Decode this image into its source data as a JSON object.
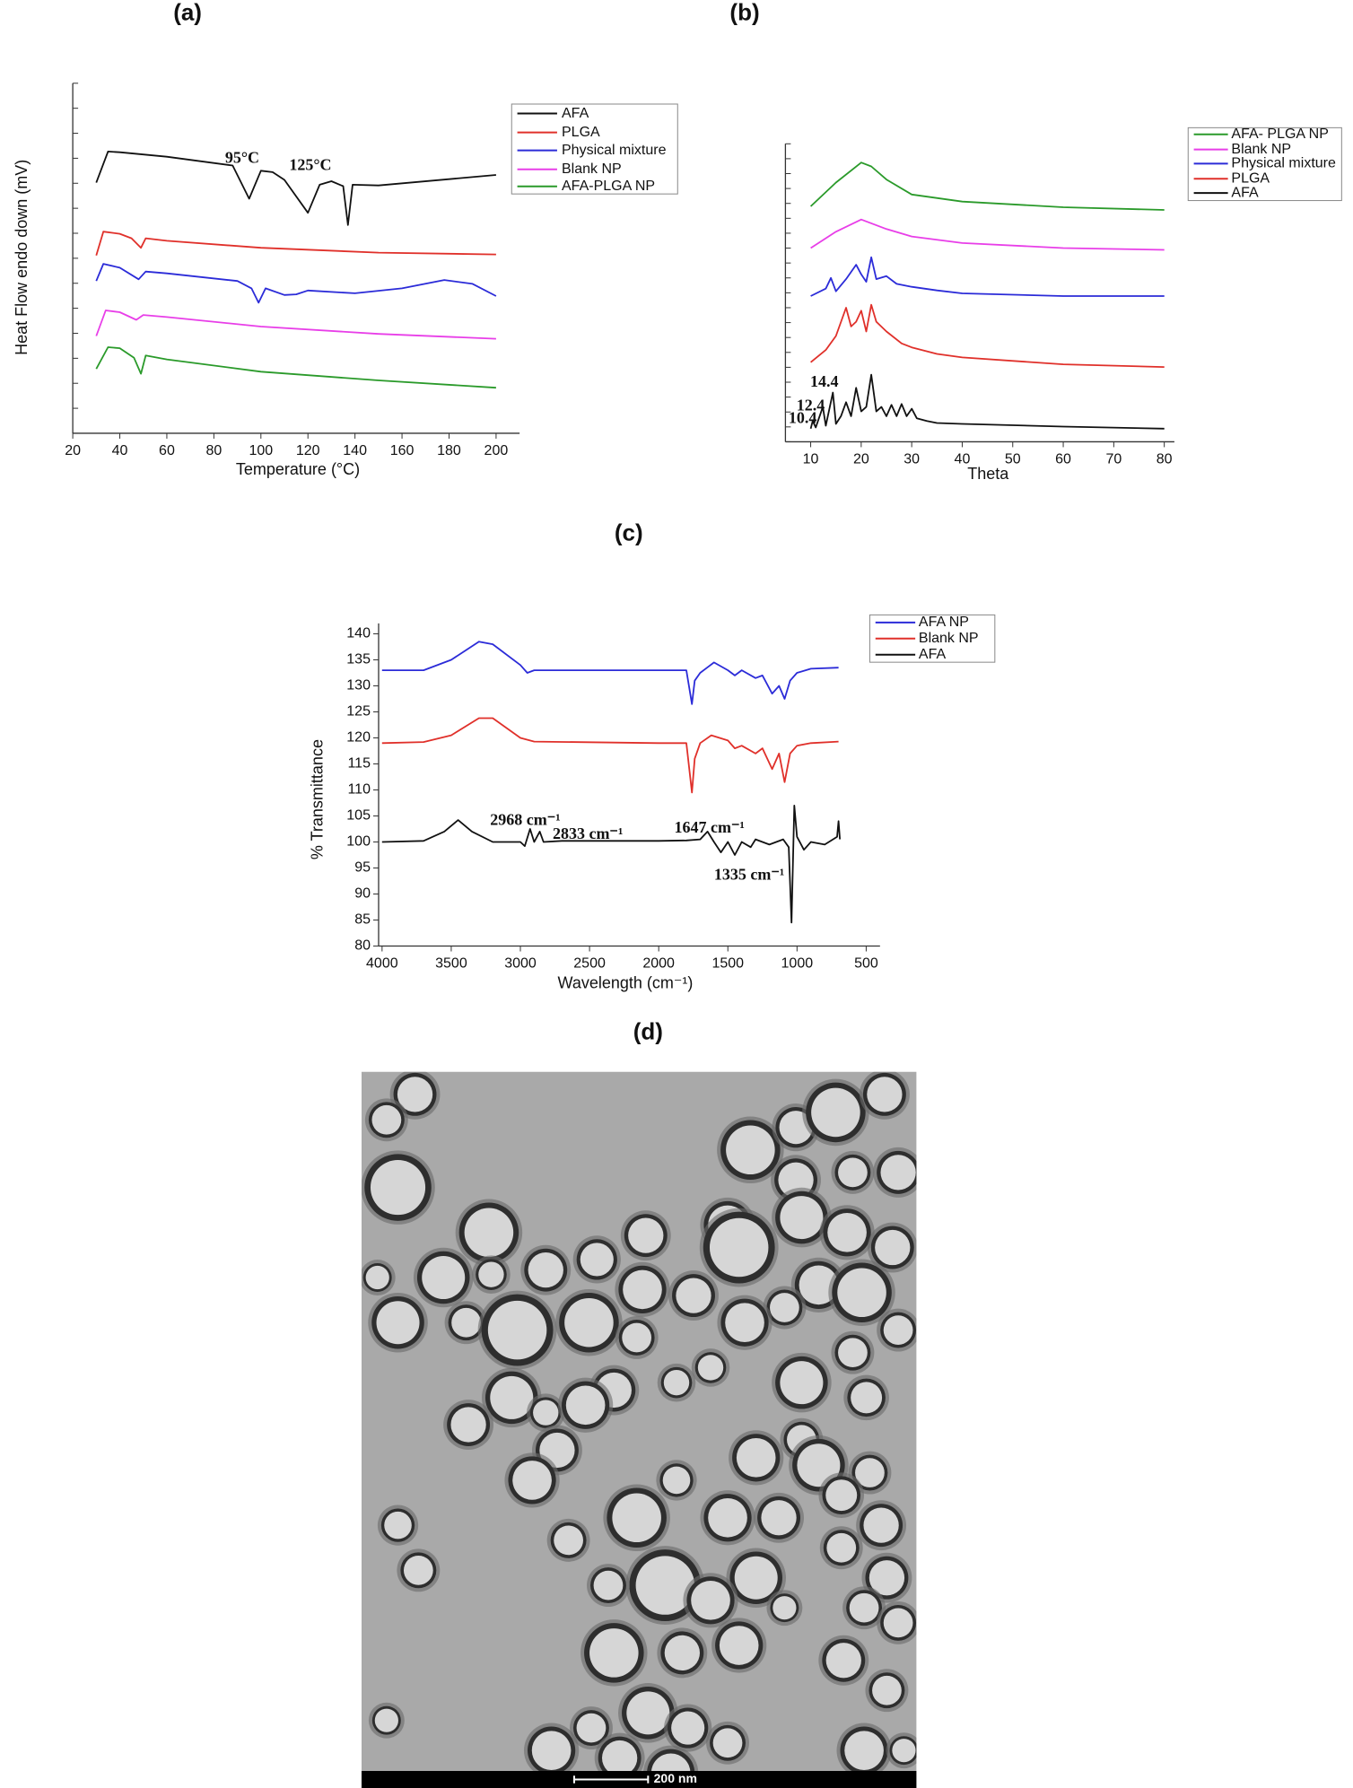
{
  "chart_data": [
    {
      "type": "line",
      "label": "(a)",
      "x_label": "Temperature (°C)",
      "y_label": "Heat Flow endo down (mV)",
      "xlim": [
        20,
        210
      ],
      "ylim": [
        0,
        100
      ],
      "xticks": [
        20,
        40,
        60,
        80,
        100,
        120,
        140,
        160,
        180,
        200
      ],
      "annotations": [
        "95°C",
        "125°C"
      ],
      "series": [
        {
          "name": "AFA",
          "color": "#111111",
          "x": [
            30,
            35,
            40,
            60,
            88,
            95,
            100,
            105,
            110,
            120,
            125,
            130,
            135,
            137,
            139,
            150,
            200
          ],
          "values": [
            71.6,
            80.5,
            80.3,
            79,
            76.5,
            67,
            75,
            74.6,
            72.4,
            63,
            71,
            72,
            70.6,
            59.5,
            71,
            70.8,
            73.8
          ]
        },
        {
          "name": "PLGA",
          "color": "#e0302a",
          "x": [
            30,
            33,
            40,
            45,
            49,
            51,
            60,
            100,
            150,
            200
          ],
          "values": [
            50.8,
            57.6,
            57,
            55.7,
            53,
            55.7,
            55,
            53,
            51.6,
            51.1
          ]
        },
        {
          "name": "Physical mixture",
          "color": "#2b2bd8",
          "x": [
            30,
            33,
            40,
            48,
            51,
            60,
            90,
            96,
            99,
            102,
            110,
            115,
            120,
            140,
            160,
            178,
            190,
            200
          ],
          "values": [
            43.5,
            48.4,
            47.3,
            44,
            46.2,
            45.7,
            43.5,
            41.4,
            37.3,
            41.4,
            39.5,
            39.7,
            40.8,
            40,
            41.4,
            43.8,
            42.7,
            39.2
          ]
        },
        {
          "name": "Blank NP",
          "color": "#e83ee8",
          "x": [
            30,
            34,
            40,
            47,
            50,
            60,
            100,
            150,
            200
          ],
          "values": [
            27.8,
            35.1,
            34.6,
            32.4,
            33.8,
            33.2,
            30.5,
            28.4,
            27
          ]
        },
        {
          "name": "AFA-PLGA NP",
          "color": "#2a9a2a",
          "x": [
            30,
            35,
            40,
            46,
            49,
            51,
            60,
            100,
            150,
            200
          ],
          "values": [
            18.4,
            24.6,
            24.3,
            21.6,
            17,
            22.2,
            21.1,
            17.6,
            15.1,
            13
          ]
        }
      ]
    },
    {
      "type": "line",
      "label": "(b)",
      "x_label": "Theta",
      "xlim": [
        5,
        82
      ],
      "ylim": [
        0,
        100
      ],
      "xticks": [
        10,
        20,
        30,
        40,
        50,
        60,
        70,
        80
      ],
      "annotations": [
        "14.4",
        "12.4",
        "10.4"
      ],
      "series": [
        {
          "name": "AFA- PLGA  NP",
          "color": "#2a9a2a",
          "x": [
            10,
            15,
            20,
            22,
            25,
            30,
            40,
            60,
            80
          ],
          "values": [
            79,
            87,
            93.7,
            92.4,
            88,
            83,
            80.6,
            78.7,
            77.8
          ]
        },
        {
          "name": "Blank NP",
          "color": "#e83ee8",
          "x": [
            10,
            15,
            20,
            25,
            30,
            40,
            60,
            80
          ],
          "values": [
            65,
            70.5,
            74.6,
            71.4,
            68.9,
            66.7,
            65,
            64.4
          ]
        },
        {
          "name": "Physical mixture",
          "color": "#2b2bd8",
          "x": [
            10,
            13,
            14,
            15,
            17,
            19,
            20,
            21,
            22,
            23,
            25,
            27,
            30,
            35,
            40,
            60,
            80
          ],
          "values": [
            48.9,
            51.4,
            55,
            50.5,
            54.6,
            59.4,
            56.2,
            53.7,
            61.9,
            54.6,
            55.6,
            53,
            52,
            50.8,
            49.8,
            48.9,
            48.9
          ]
        },
        {
          "name": "PLGA",
          "color": "#e0302a",
          "x": [
            10,
            13,
            15,
            17,
            18,
            19,
            20,
            21,
            22,
            23,
            25,
            28,
            30,
            35,
            40,
            60,
            80
          ],
          "values": [
            26.7,
            30.8,
            35.5,
            45,
            38.7,
            40.3,
            44,
            37,
            46,
            40.3,
            37,
            33,
            31.7,
            29.5,
            28.3,
            26,
            25.1
          ]
        },
        {
          "name": "AFA",
          "color": "#111111",
          "x": [
            10,
            10.4,
            11,
            12.4,
            13,
            14.4,
            15,
            16,
            17,
            18,
            19,
            20,
            21,
            22,
            23,
            24,
            25,
            26,
            27,
            28,
            29,
            30,
            31,
            33,
            35,
            40,
            60,
            80
          ],
          "values": [
            4.4,
            7,
            4.8,
            11.7,
            5.4,
            16.5,
            6,
            8.6,
            13.3,
            8.6,
            18.1,
            10.2,
            11.7,
            22.5,
            10.2,
            11.7,
            8.6,
            12.4,
            8.6,
            12.7,
            8.6,
            11.1,
            7.9,
            7,
            6.3,
            6,
            5.1,
            4.4
          ]
        }
      ]
    },
    {
      "type": "line",
      "label": "(c)",
      "x_label": "Wavelength (cm⁻¹)",
      "y_label": "% Transmittance",
      "xlim": [
        4025,
        400
      ],
      "ylim": [
        80,
        142
      ],
      "xticks": [
        4000,
        3500,
        3000,
        2500,
        2000,
        1500,
        1000,
        500
      ],
      "yticks": [
        80,
        85,
        90,
        95,
        100,
        105,
        110,
        115,
        120,
        125,
        130,
        135,
        140
      ],
      "annotations": [
        "2968 cm⁻¹",
        "2833 cm⁻¹",
        "1647 cm⁻¹",
        "1335 cm⁻¹"
      ],
      "series": [
        {
          "name": "AFA NP",
          "color": "#2b2bd8",
          "x": [
            4000,
            3700,
            3500,
            3300,
            3200,
            3000,
            2950,
            2900,
            2000,
            1800,
            1760,
            1740,
            1700,
            1650,
            1600,
            1500,
            1450,
            1400,
            1300,
            1250,
            1180,
            1130,
            1090,
            1050,
            1000,
            900,
            700
          ],
          "values": [
            133,
            133,
            135,
            138.5,
            138,
            134,
            132.5,
            133,
            133,
            133,
            126.5,
            131,
            132.5,
            133.5,
            134.5,
            133,
            132,
            133,
            131.5,
            132,
            128.5,
            130,
            127.5,
            131,
            132.5,
            133.3,
            133.5
          ]
        },
        {
          "name": "Blank NP",
          "color": "#e0302a",
          "x": [
            4000,
            3700,
            3500,
            3300,
            3200,
            3000,
            2900,
            2000,
            1800,
            1760,
            1740,
            1700,
            1620,
            1500,
            1450,
            1400,
            1300,
            1250,
            1180,
            1130,
            1090,
            1050,
            1000,
            900,
            700
          ],
          "values": [
            119,
            119.2,
            120.5,
            123.8,
            123.8,
            120,
            119.3,
            119,
            119,
            109.5,
            116,
            119,
            120.5,
            119.5,
            118,
            118.5,
            117,
            118,
            114,
            117,
            111.5,
            117,
            118.5,
            119,
            119.3
          ]
        },
        {
          "name": "AFA",
          "color": "#111111",
          "x": [
            4000,
            3700,
            3550,
            3450,
            3350,
            3200,
            3000,
            2968,
            2930,
            2900,
            2860,
            2833,
            2700,
            2000,
            1800,
            1700,
            1647,
            1600,
            1550,
            1500,
            1450,
            1400,
            1335,
            1300,
            1200,
            1100,
            1060,
            1040,
            1020,
            1000,
            950,
            900,
            800,
            710,
            700,
            690
          ],
          "values": [
            100,
            100.2,
            102,
            104.2,
            102,
            100,
            100,
            99.2,
            102.5,
            100,
            102,
            100,
            100.2,
            100.2,
            100.3,
            100.5,
            102,
            100,
            98,
            100,
            97.5,
            100,
            99,
            100.5,
            99.5,
            100.5,
            99,
            84.5,
            107,
            101,
            98.5,
            100,
            99.5,
            101,
            104,
            100.5
          ]
        }
      ]
    }
  ],
  "image": {
    "label": "(d)",
    "scale_bar": "200 nm"
  }
}
